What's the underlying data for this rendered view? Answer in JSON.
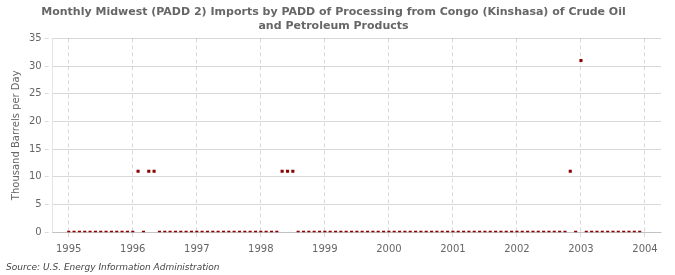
{
  "chart_data": {
    "type": "scatter",
    "title": "Monthly Midwest (PADD 2) Imports by PADD of Processing from Congo (Kinshasa) of Crude Oil\nand Petroleum Products",
    "ylabel": "Thousand Barrels per Day",
    "source": "Source: U.S. Energy Information Administration",
    "color": "#8b0000",
    "marker": "square",
    "grid": true,
    "xlim": [
      1994.75,
      2004.25
    ],
    "ylim": [
      0,
      35
    ],
    "xticks": [
      1995,
      1996,
      1997,
      1998,
      1999,
      2000,
      2001,
      2002,
      2003,
      2004
    ],
    "yticks": [
      0,
      5,
      10,
      15,
      20,
      25,
      30,
      35
    ],
    "x": [
      1995.0,
      1995.083,
      1995.167,
      1995.25,
      1995.333,
      1995.417,
      1995.5,
      1995.583,
      1995.667,
      1995.75,
      1995.833,
      1995.917,
      1996.0,
      1996.083,
      1996.167,
      1996.25,
      1996.333,
      1996.417,
      1996.5,
      1996.583,
      1996.667,
      1996.75,
      1996.833,
      1996.917,
      1997.0,
      1997.083,
      1997.167,
      1997.25,
      1997.333,
      1997.417,
      1997.5,
      1997.583,
      1997.667,
      1997.75,
      1997.833,
      1997.917,
      1998.0,
      1998.083,
      1998.167,
      1998.25,
      1998.333,
      1998.417,
      1998.5,
      1998.583,
      1998.667,
      1998.75,
      1998.833,
      1998.917,
      1999.0,
      1999.083,
      1999.167,
      1999.25,
      1999.333,
      1999.417,
      1999.5,
      1999.583,
      1999.667,
      1999.75,
      1999.833,
      1999.917,
      2000.0,
      2000.083,
      2000.167,
      2000.25,
      2000.333,
      2000.417,
      2000.5,
      2000.583,
      2000.667,
      2000.75,
      2000.833,
      2000.917,
      2001.0,
      2001.083,
      2001.167,
      2001.25,
      2001.333,
      2001.417,
      2001.5,
      2001.583,
      2001.667,
      2001.75,
      2001.833,
      2001.917,
      2002.0,
      2002.083,
      2002.167,
      2002.25,
      2002.333,
      2002.417,
      2002.5,
      2002.583,
      2002.667,
      2002.75,
      2002.833,
      2002.917,
      2003.0,
      2003.083,
      2003.167,
      2003.25,
      2003.333,
      2003.417,
      2003.5,
      2003.583,
      2003.667,
      2003.75,
      2003.833,
      2003.917
    ],
    "values": [
      0,
      0,
      0,
      0,
      0,
      0,
      0,
      0,
      0,
      0,
      0,
      0,
      0,
      11,
      0,
      11,
      11,
      0,
      0,
      0,
      0,
      0,
      0,
      0,
      0,
      0,
      0,
      0,
      0,
      0,
      0,
      0,
      0,
      0,
      0,
      0,
      0,
      0,
      0,
      0,
      11,
      11,
      11,
      0,
      0,
      0,
      0,
      0,
      0,
      0,
      0,
      0,
      0,
      0,
      0,
      0,
      0,
      0,
      0,
      0,
      0,
      0,
      0,
      0,
      0,
      0,
      0,
      0,
      0,
      0,
      0,
      0,
      0,
      0,
      0,
      0,
      0,
      0,
      0,
      0,
      0,
      0,
      0,
      0,
      0,
      0,
      0,
      0,
      0,
      0,
      0,
      0,
      0,
      0,
      11,
      0,
      31,
      0,
      0,
      0,
      0,
      0,
      0,
      0,
      0,
      0,
      0,
      0
    ]
  }
}
